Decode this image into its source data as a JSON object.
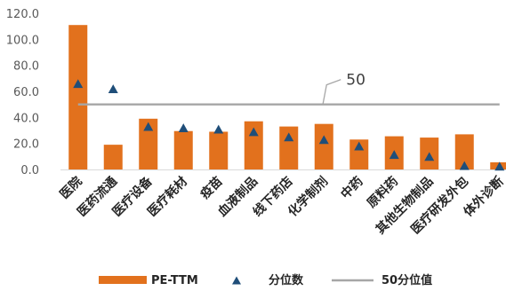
{
  "chart_data": {
    "type": "bar",
    "categories": [
      "医院",
      "医药流通",
      "医疗设备",
      "医疗耗材",
      "疫苗",
      "血液制品",
      "线下药店",
      "化学制剂",
      "中药",
      "原料药",
      "其他生物制品",
      "医疗研发外包",
      "体外诊断"
    ],
    "series": [
      {
        "name": "PE-TTM",
        "kind": "bar",
        "values": [
          111,
          19,
          39,
          29.5,
          29,
          37,
          33,
          35,
          23,
          25.5,
          24.5,
          27,
          5.5
        ]
      },
      {
        "name": "分位数",
        "kind": "marker",
        "values": [
          66,
          62,
          33,
          32,
          31,
          29,
          25,
          23,
          18,
          11.5,
          10,
          3,
          2.5
        ]
      },
      {
        "name": "50分位值",
        "kind": "line",
        "values": [
          50,
          50,
          50,
          50,
          50,
          50,
          50,
          50,
          50,
          50,
          50,
          50,
          50
        ]
      }
    ],
    "yticks": [
      "0.0",
      "20.0",
      "40.0",
      "60.0",
      "80.0",
      "100.0",
      "120.0"
    ],
    "ylim": [
      0,
      120
    ],
    "grid": false,
    "legend_position": "bottom",
    "annotation": "50",
    "colors": {
      "bar": "#E2711D",
      "marker": "#1F4E79",
      "line": "#A6A6A6",
      "axis": "#D9D9D9"
    }
  }
}
